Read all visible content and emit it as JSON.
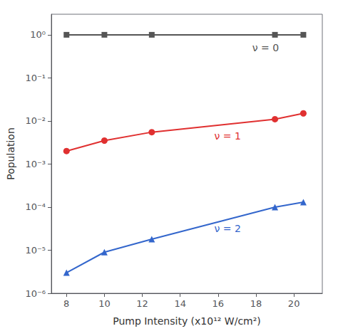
{
  "chart_data": {
    "type": "line",
    "log": "y",
    "grid": false,
    "xlabel": "Pump Intensity (x10¹² W/cm²)",
    "ylabel": "Population",
    "xlim": [
      7.2,
      21.5
    ],
    "xticks": [
      8,
      10,
      12,
      14,
      16,
      18,
      20
    ],
    "ylim": [
      1e-06,
      3.0
    ],
    "yticks": [
      {
        "value": 1e-06,
        "label": "10⁻⁶"
      },
      {
        "value": 1e-05,
        "label": "10⁻⁵"
      },
      {
        "value": 0.0001,
        "label": "10⁻⁴"
      },
      {
        "value": 0.001,
        "label": "10⁻³"
      },
      {
        "value": 0.01,
        "label": "10⁻²"
      },
      {
        "value": 0.1,
        "label": "10⁻¹"
      },
      {
        "value": 1,
        "label": "10⁰"
      }
    ],
    "series": [
      {
        "color": "#555555",
        "marker": "square",
        "x": [
          8,
          10,
          12.5,
          19,
          20.5
        ],
        "values": [
          1.0,
          1.0,
          1.0,
          1.0,
          1.0
        ]
      },
      {
        "color": "#e03030",
        "marker": "circle",
        "x": [
          8,
          10,
          12.5,
          19,
          20.5
        ],
        "values": [
          0.002,
          0.0035,
          0.0055,
          0.011,
          0.015
        ]
      },
      {
        "color": "#3366cc",
        "marker": "triangle",
        "x": [
          8,
          10,
          12.5,
          19,
          20.5
        ],
        "values": [
          3e-06,
          9e-06,
          1.8e-05,
          0.0001,
          0.00013
        ]
      }
    ],
    "annotations": [
      {
        "text": "ν = 0",
        "x": 17.8,
        "y": 0.5,
        "color": "#555555"
      },
      {
        "text": "ν = 1",
        "x": 15.8,
        "y": 0.0045,
        "color": "#e03030"
      },
      {
        "text": "ν = 2",
        "x": 15.8,
        "y": 3.2e-05,
        "color": "#3366cc"
      }
    ]
  }
}
